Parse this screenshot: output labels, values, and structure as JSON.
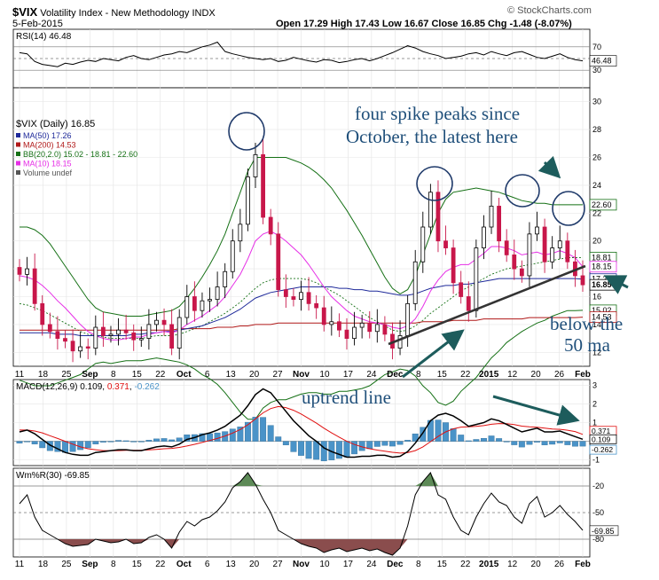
{
  "header": {
    "symbol": "$VIX",
    "name": "Volatility Index - New Methodology",
    "exchange": "INDX",
    "date": "5-Feb-2015",
    "ohlc": "Open 17.29  High 17.43  Low 16.67  Close 16.85  Chg -1.48 (-8.07%)",
    "watermark": "© StockCharts.com"
  },
  "colors": {
    "up": "#000000",
    "down": "#c8174a",
    "ma50": "#1f2a9a",
    "ma200": "#b01818",
    "bb": "#157015",
    "ma10": "#e62ee6",
    "macd_line": "#000000",
    "signal": "#e01010",
    "histogram": "#4a93c8",
    "wm_fill_high": "#5d8a57",
    "wm_fill_low": "#8a4d4d",
    "annotation": "#1f4f7a",
    "arrow": "#1d5c5c"
  },
  "chart_data": [
    {
      "panel": "rsi",
      "type": "line",
      "indicator_label": "RSI(14) 46.48",
      "ylim": [
        0,
        100
      ],
      "ticks": [
        70,
        50,
        30
      ],
      "last_value": "46.48",
      "values": [
        60,
        58,
        45,
        40,
        38,
        36,
        42,
        40,
        44,
        47,
        45,
        50,
        48,
        46,
        52,
        55,
        50,
        48,
        52,
        56,
        58,
        62,
        60,
        65,
        70,
        73,
        78,
        62,
        58,
        55,
        52,
        50,
        48,
        50,
        45,
        47,
        52,
        49,
        46,
        44,
        48,
        47,
        43,
        45,
        48,
        50,
        46,
        50,
        55,
        60,
        66,
        72,
        68,
        62,
        58,
        55,
        50,
        52,
        54,
        58,
        60,
        56,
        62,
        58,
        55,
        60,
        62,
        57,
        52,
        50,
        54,
        58,
        52,
        48,
        46
      ]
    },
    {
      "panel": "price",
      "type": "candlestick",
      "price_label": "$VIX (Daily) 16.85",
      "legend": [
        {
          "label": "MA(50) 17.26",
          "color": "#1f2a9a"
        },
        {
          "label": "MA(200) 14.53",
          "color": "#b01818"
        },
        {
          "label": "BB(20,2.0) 15.02 - 18.81 - 22.60",
          "color": "#157015"
        },
        {
          "label": "MA(10) 18.15",
          "color": "#e62ee6"
        },
        {
          "label": "Volume undef",
          "color": "#555555"
        }
      ],
      "ylim": [
        11,
        31
      ],
      "ticks": [
        30,
        28,
        26,
        24,
        22,
        20,
        18,
        16,
        14,
        12
      ],
      "right_labels": [
        {
          "text": "22.60",
          "value": 22.6,
          "color": "#157015"
        },
        {
          "text": "18.81",
          "value": 18.81,
          "color": "#157015"
        },
        {
          "text": "18.15",
          "value": 18.15,
          "color": "#e62ee6"
        },
        {
          "text": "17.26",
          "value": 17.26,
          "color": "#1f2a9a"
        },
        {
          "text": "16.85",
          "value": 16.85,
          "color": "#000000"
        },
        {
          "text": "15.02",
          "value": 15.02,
          "color": "#157015"
        },
        {
          "text": "14.53",
          "value": 14.53,
          "color": "#b01818"
        }
      ],
      "x_ticks": [
        "11",
        "18",
        "25",
        "Sep",
        "8",
        "15",
        "22",
        "Oct",
        "6",
        "13",
        "20",
        "27",
        "Nov",
        "10",
        "17",
        "24",
        "Dec",
        "8",
        "15",
        "22",
        "2015",
        "12",
        "20",
        "26",
        "Feb"
      ],
      "closes": [
        17.6,
        18.0,
        15.5,
        14.0,
        13.5,
        13.0,
        12.8,
        12.1,
        12.4,
        12.3,
        13.8,
        13.2,
        13.3,
        13.6,
        13.4,
        12.9,
        13.0,
        14.0,
        14.3,
        14.0,
        12.3,
        14.5,
        16.0,
        15.0,
        15.7,
        15.8,
        16.7,
        17.8,
        20.0,
        21.2,
        24.6,
        26.2,
        21.7,
        20.5,
        16.5,
        16.0,
        15.8,
        16.3,
        15.5,
        15.2,
        14.0,
        14.2,
        13.6,
        13.0,
        13.8,
        14.1,
        13.5,
        14.0,
        13.3,
        12.3,
        13.2,
        15.5,
        18.5,
        21.0,
        23.5,
        20.0,
        19.5,
        17.0,
        16.0,
        15.0,
        19.5,
        21.0,
        22.5,
        20.0,
        19.0,
        18.0,
        17.5,
        20.5,
        21.0,
        18.5,
        19.5,
        20.0,
        18.5,
        17.5,
        16.85
      ],
      "ma10": [
        17.5,
        17.4,
        17.2,
        16.8,
        16.3,
        15.7,
        15.2,
        14.6,
        14.0,
        13.5,
        13.2,
        13.0,
        12.9,
        12.9,
        13.0,
        13.1,
        13.1,
        13.3,
        13.4,
        13.5,
        13.4,
        13.6,
        14.0,
        14.3,
        14.6,
        15.0,
        15.4,
        16.0,
        16.8,
        17.6,
        18.7,
        20.0,
        20.5,
        20.7,
        20.4,
        20.0,
        19.5,
        19.0,
        18.3,
        17.5,
        16.7,
        16.0,
        15.5,
        15.0,
        14.6,
        14.4,
        14.2,
        14.1,
        14.0,
        13.8,
        13.7,
        13.9,
        14.4,
        15.3,
        16.4,
        17.2,
        17.8,
        18.1,
        18.3,
        18.3,
        18.7,
        19.1,
        19.6,
        19.6,
        19.5,
        19.3,
        19.0,
        19.1,
        19.2,
        19.0,
        19.1,
        19.3,
        19.1,
        18.8,
        18.15
      ],
      "ma50": [
        13.4,
        13.4,
        13.4,
        13.4,
        13.4,
        13.3,
        13.3,
        13.3,
        13.2,
        13.2,
        13.2,
        13.2,
        13.2,
        13.2,
        13.2,
        13.3,
        13.3,
        13.4,
        13.4,
        13.5,
        13.5,
        13.6,
        13.7,
        13.8,
        13.9,
        14.1,
        14.3,
        14.5,
        14.8,
        15.1,
        15.5,
        15.9,
        16.1,
        16.3,
        16.4,
        16.5,
        16.6,
        16.7,
        16.7,
        16.7,
        16.7,
        16.7,
        16.6,
        16.6,
        16.5,
        16.5,
        16.4,
        16.4,
        16.3,
        16.2,
        16.1,
        16.1,
        16.2,
        16.4,
        16.6,
        16.7,
        16.8,
        16.8,
        16.9,
        16.9,
        17.0,
        17.1,
        17.2,
        17.3,
        17.3,
        17.3,
        17.3,
        17.3,
        17.3,
        17.3,
        17.3,
        17.3,
        17.3,
        17.3,
        17.26
      ],
      "ma200": [
        13.6,
        13.6,
        13.6,
        13.6,
        13.6,
        13.6,
        13.6,
        13.6,
        13.6,
        13.6,
        13.6,
        13.6,
        13.6,
        13.6,
        13.6,
        13.6,
        13.6,
        13.6,
        13.6,
        13.6,
        13.6,
        13.7,
        13.7,
        13.7,
        13.7,
        13.7,
        13.8,
        13.8,
        13.8,
        13.9,
        13.9,
        14.0,
        14.0,
        14.0,
        14.1,
        14.1,
        14.1,
        14.1,
        14.1,
        14.1,
        14.1,
        14.1,
        14.1,
        14.1,
        14.1,
        14.1,
        14.1,
        14.1,
        14.1,
        14.1,
        14.1,
        14.1,
        14.1,
        14.2,
        14.2,
        14.2,
        14.2,
        14.3,
        14.3,
        14.3,
        14.3,
        14.4,
        14.4,
        14.4,
        14.4,
        14.4,
        14.4,
        14.5,
        14.5,
        14.5,
        14.5,
        14.5,
        14.5,
        14.5,
        14.53
      ],
      "bb_mid": [
        15.5,
        15.4,
        15.2,
        15.0,
        14.7,
        14.4,
        14.1,
        13.8,
        13.5,
        13.3,
        13.2,
        13.1,
        13.0,
        13.0,
        13.0,
        13.0,
        13.0,
        13.1,
        13.2,
        13.2,
        13.2,
        13.3,
        13.5,
        13.7,
        13.9,
        14.2,
        14.5,
        14.8,
        15.2,
        15.6,
        16.1,
        16.6,
        17.0,
        17.2,
        17.3,
        17.3,
        17.3,
        17.3,
        17.2,
        17.0,
        16.7,
        16.4,
        16.1,
        15.7,
        15.3,
        14.9,
        14.5,
        14.2,
        13.9,
        13.6,
        13.5,
        13.6,
        13.9,
        14.3,
        14.8,
        15.2,
        15.6,
        16.0,
        16.4,
        16.7,
        17.0,
        17.3,
        17.6,
        17.8,
        18.0,
        18.1,
        18.2,
        18.3,
        18.4,
        18.5,
        18.6,
        18.7,
        18.8,
        18.8,
        18.81
      ],
      "bb_upper": [
        21.0,
        21.0,
        20.8,
        20.4,
        19.8,
        19.0,
        18.2,
        17.4,
        16.6,
        15.8,
        15.2,
        14.9,
        14.8,
        14.7,
        14.6,
        14.6,
        14.6,
        14.7,
        14.8,
        14.9,
        15.0,
        15.3,
        15.9,
        16.6,
        17.4,
        18.3,
        19.3,
        20.5,
        22.0,
        23.5,
        25.0,
        26.0,
        26.0,
        26.0,
        26.0,
        26.0,
        25.8,
        25.6,
        25.3,
        24.9,
        24.4,
        23.8,
        23.0,
        22.2,
        21.3,
        20.4,
        19.4,
        18.4,
        17.4,
        16.6,
        16.2,
        16.5,
        17.5,
        19.0,
        20.5,
        22.0,
        23.0,
        23.5,
        23.6,
        23.7,
        23.8,
        23.7,
        23.6,
        23.5,
        23.3,
        23.1,
        22.9,
        22.8,
        22.7,
        22.7,
        22.6,
        22.6,
        22.6,
        22.6,
        22.6
      ],
      "bb_lower": [
        10.0,
        9.8,
        9.6,
        9.6,
        9.6,
        9.8,
        10.0,
        10.2,
        10.4,
        10.8,
        11.2,
        11.3,
        11.2,
        11.3,
        11.4,
        11.4,
        11.4,
        11.5,
        11.6,
        11.5,
        11.4,
        11.3,
        11.1,
        10.8,
        10.4,
        10.1,
        9.7,
        9.1,
        8.4,
        7.7,
        7.2,
        7.2,
        8.0,
        8.4,
        8.6,
        8.6,
        8.8,
        9.0,
        9.1,
        9.1,
        9.0,
        9.0,
        9.2,
        9.2,
        9.3,
        9.4,
        9.6,
        10.0,
        10.4,
        10.6,
        10.8,
        10.7,
        10.3,
        9.6,
        9.1,
        8.4,
        8.2,
        8.5,
        9.2,
        9.7,
        10.2,
        10.9,
        11.6,
        12.1,
        12.7,
        13.1,
        13.5,
        13.8,
        14.1,
        14.3,
        14.6,
        14.8,
        15.0,
        15.0,
        15.02
      ]
    },
    {
      "panel": "macd",
      "type": "line",
      "indicator_label": "MACD(12,26,9)",
      "macd_value": "0.109",
      "signal_value": "0.371",
      "hist_value": "-0.262",
      "ylim": [
        -1.3,
        3.3
      ],
      "ticks": [
        3,
        2,
        1,
        0,
        -1
      ],
      "right_labels": [
        {
          "text": "0.371",
          "value": 0.371,
          "color": "#e01010"
        },
        {
          "text": "0.109",
          "value": 0.109,
          "color": "#000000"
        },
        {
          "text": "-0.262",
          "value": -0.262,
          "color": "#4a93c8"
        }
      ],
      "macd": [
        0.5,
        0.6,
        0.4,
        0.1,
        -0.2,
        -0.4,
        -0.6,
        -0.7,
        -0.75,
        -0.75,
        -0.6,
        -0.55,
        -0.5,
        -0.45,
        -0.45,
        -0.5,
        -0.5,
        -0.4,
        -0.3,
        -0.25,
        -0.3,
        -0.15,
        0.1,
        0.2,
        0.35,
        0.45,
        0.6,
        0.8,
        1.1,
        1.4,
        1.9,
        2.5,
        2.8,
        2.6,
        2.1,
        1.6,
        1.1,
        0.7,
        0.3,
        0.0,
        -0.35,
        -0.55,
        -0.7,
        -0.85,
        -0.85,
        -0.8,
        -0.8,
        -0.75,
        -0.75,
        -0.85,
        -0.8,
        -0.55,
        -0.1,
        0.45,
        1.1,
        1.4,
        1.5,
        1.35,
        1.1,
        0.8,
        0.9,
        1.0,
        1.2,
        1.1,
        0.9,
        0.7,
        0.5,
        0.6,
        0.7,
        0.5,
        0.5,
        0.55,
        0.4,
        0.25,
        0.109
      ],
      "signal": [
        0.6,
        0.6,
        0.55,
        0.45,
        0.3,
        0.15,
        0.0,
        -0.15,
        -0.3,
        -0.4,
        -0.45,
        -0.5,
        -0.5,
        -0.5,
        -0.48,
        -0.48,
        -0.48,
        -0.46,
        -0.43,
        -0.4,
        -0.38,
        -0.33,
        -0.25,
        -0.16,
        -0.06,
        0.04,
        0.15,
        0.28,
        0.44,
        0.63,
        0.88,
        1.2,
        1.52,
        1.75,
        1.86,
        1.8,
        1.66,
        1.46,
        1.22,
        0.97,
        0.7,
        0.45,
        0.22,
        0.0,
        -0.17,
        -0.3,
        -0.4,
        -0.47,
        -0.53,
        -0.59,
        -0.63,
        -0.61,
        -0.5,
        -0.3,
        -0.02,
        0.26,
        0.5,
        0.67,
        0.76,
        0.77,
        0.8,
        0.84,
        0.91,
        0.95,
        0.94,
        0.89,
        0.81,
        0.77,
        0.75,
        0.7,
        0.66,
        0.64,
        0.59,
        0.52,
        0.371
      ]
    },
    {
      "panel": "williams",
      "type": "line",
      "indicator_label": "Wm%R(30) -69.85",
      "ylim": [
        -100,
        0
      ],
      "ticks": [
        -20,
        -50,
        -80
      ],
      "last_value": "-69.85",
      "values": [
        -40,
        -30,
        -55,
        -70,
        -75,
        -80,
        -85,
        -88,
        -87,
        -86,
        -80,
        -82,
        -84,
        -83,
        -80,
        -85,
        -84,
        -78,
        -75,
        -80,
        -90,
        -72,
        -60,
        -65,
        -58,
        -55,
        -48,
        -38,
        -22,
        -15,
        -5,
        -18,
        -35,
        -50,
        -70,
        -75,
        -80,
        -85,
        -88,
        -90,
        -95,
        -92,
        -90,
        -94,
        -92,
        -90,
        -93,
        -91,
        -95,
        -98,
        -90,
        -65,
        -30,
        -15,
        -5,
        -30,
        -35,
        -55,
        -70,
        -75,
        -55,
        -40,
        -28,
        -38,
        -42,
        -55,
        -62,
        -40,
        -32,
        -55,
        -50,
        -42,
        -52,
        -60,
        -69.85
      ]
    }
  ],
  "annotations": {
    "peaks_text_1": "four spike peaks since",
    "peaks_text_2": "October, the latest here",
    "uptrend_text": "uptrend line",
    "below_text_1": "below the",
    "below_text_2": "50 ma"
  }
}
